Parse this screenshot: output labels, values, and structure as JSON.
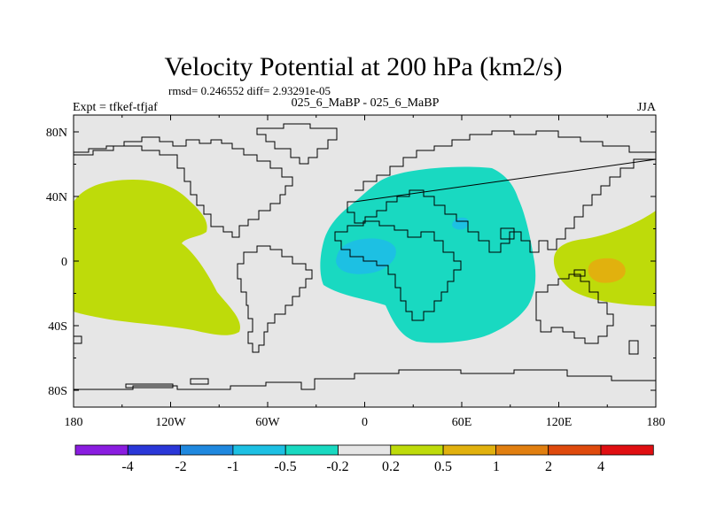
{
  "title": "Velocity Potential at 200 hPa (km2/s)",
  "stats": "rmsd= 0.246552 diff= 2.93291e-05",
  "left_label": "Expt = tfkef-tfjaf",
  "center_label": "025_6_MaBP - 025_6_MaBP",
  "right_label": "JJA",
  "map_background": "#e6e6e6",
  "x_ticks": [
    "180",
    "120W",
    "60W",
    "0",
    "60E",
    "120E",
    "180"
  ],
  "y_ticks": [
    "80N",
    "40N",
    "0",
    "40S",
    "80S"
  ],
  "colorbar": {
    "colors": [
      "#8a1de0",
      "#2a37d8",
      "#1f88df",
      "#1dc0e3",
      "#19d9c1",
      "#e6e6e6",
      "#bedb0a",
      "#e1b10e",
      "#e17f10",
      "#df4a0d",
      "#e00f12"
    ],
    "labels": [
      "-4",
      "-2",
      "-1",
      "-0.5",
      "-0.2",
      "0.2",
      "0.5",
      "1",
      "2",
      "4"
    ]
  },
  "regions": [
    {
      "name": "pacific-positive-region",
      "color": "#bedb0a",
      "level": "0.2 to 0.5"
    },
    {
      "name": "africa-negative-region",
      "color": "#19d9c1",
      "level": "-0.5 to -0.2"
    },
    {
      "name": "atlantic-negative-core",
      "color": "#1dc0e3",
      "level": "-1 to -0.5"
    },
    {
      "name": "arabia-negative-core",
      "color": "#1dc0e3",
      "level": "-1 to -0.5"
    },
    {
      "name": "west-pacific-positive-region",
      "color": "#bedb0a",
      "level": "0.2 to 0.5"
    },
    {
      "name": "west-pacific-positive-core",
      "color": "#e1b10e",
      "level": "0.5 to 1"
    }
  ]
}
